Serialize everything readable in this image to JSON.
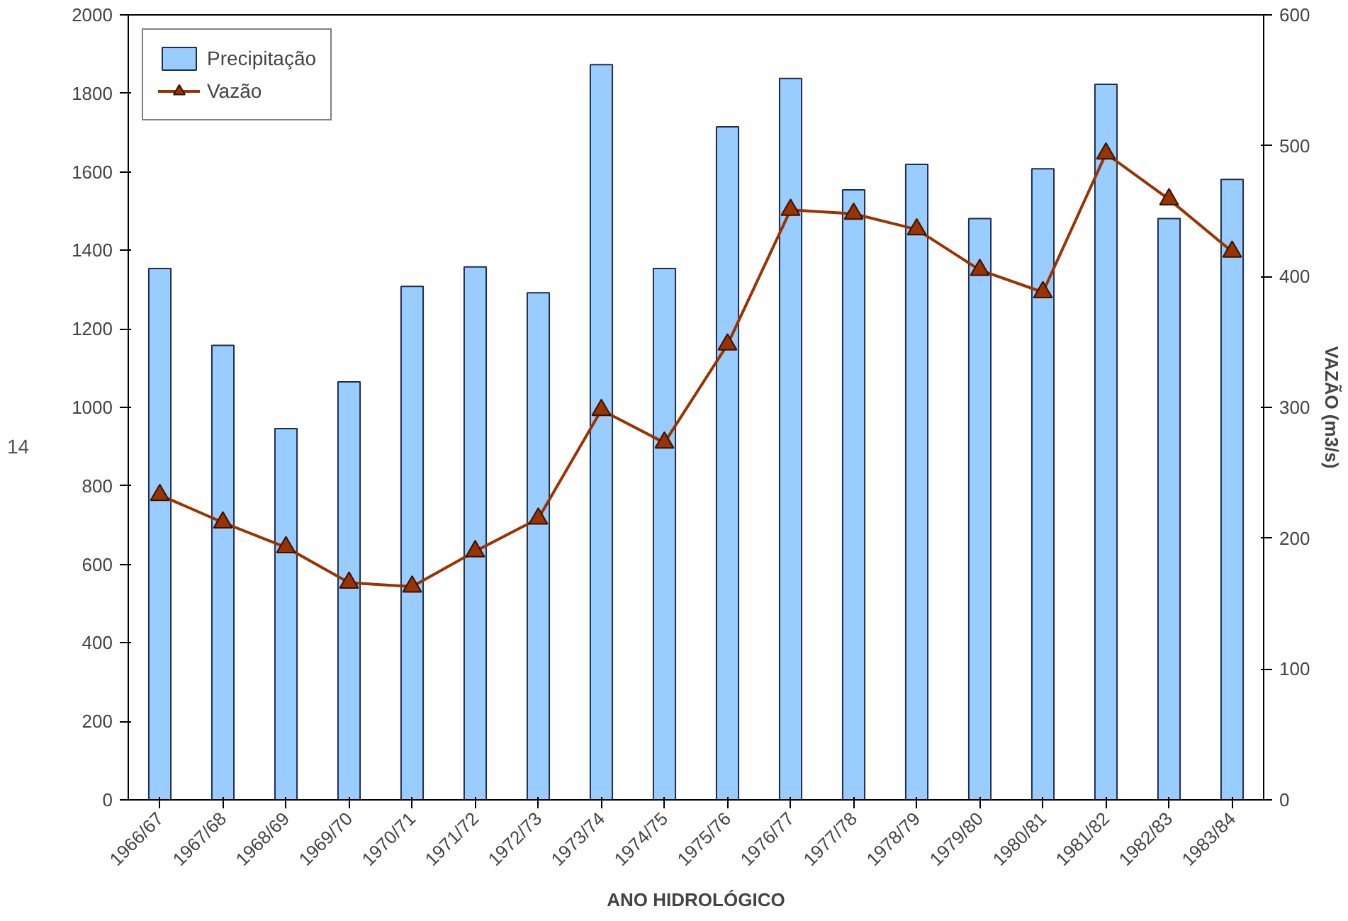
{
  "chart_data": {
    "type": "bar",
    "xlabel": "ANO HIDROLÓGICO",
    "y2label": "VAZÃO (m3/s)",
    "categories": [
      "1966/67",
      "1967/68",
      "1968/69",
      "1969/70",
      "1970/71",
      "1971/72",
      "1972/73",
      "1973/74",
      "1974/75",
      "1975/76",
      "1976/77",
      "1977/78",
      "1978/79",
      "1979/80",
      "1980/81",
      "1981/82",
      "1982/83",
      "1983/84"
    ],
    "series": [
      {
        "name": "Precipitação",
        "color": "#99ccff",
        "values": [
          1354,
          1158,
          946,
          1065,
          1308,
          1358,
          1292,
          1873,
          1354,
          1715,
          1838,
          1554,
          1619,
          1481,
          1608,
          1823,
          1481,
          1581
        ]
      },
      {
        "name": "Vazão",
        "type": "line",
        "axis": "y2",
        "color": "#993300",
        "marker": "triangle",
        "values": [
          233,
          212,
          193,
          166,
          163,
          190,
          215,
          298,
          273,
          348,
          451,
          448,
          436,
          405,
          388,
          494,
          459,
          419
        ]
      }
    ],
    "ylim": [
      0,
      2000
    ],
    "yticks": [
      0,
      200,
      400,
      600,
      800,
      1000,
      1200,
      1400,
      1600,
      1800,
      2000
    ],
    "y2lim": [
      0,
      600
    ],
    "y2ticks": [
      0,
      100,
      200,
      300,
      400,
      500,
      600
    ],
    "grid": false,
    "legend": "top left",
    "annotations": [
      "14"
    ]
  }
}
